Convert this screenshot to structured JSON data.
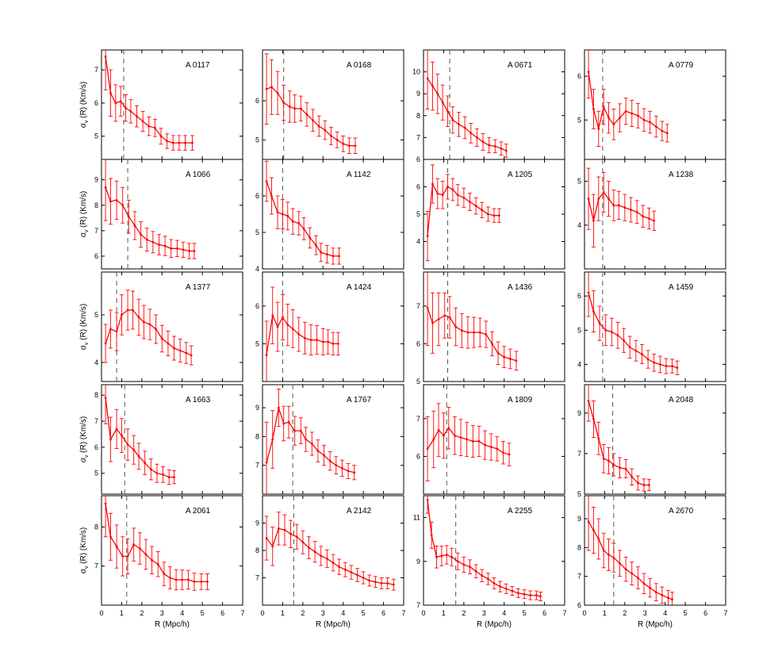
{
  "figure": {
    "ylabel_main": "σ",
    "ylabel_sub": "v",
    "ylabel_rest": " (R) (Km/s)",
    "xlabel": "R (Mpc/h)",
    "x_ticks": [
      "0",
      "1",
      "2",
      "3",
      "4",
      "5",
      "6",
      "7"
    ],
    "colors": {
      "series": "#ff0000",
      "axis": "#000000",
      "marker": "#555555"
    }
  },
  "chart_data": [
    {
      "type": "line",
      "title": "A 0117",
      "xlim": [
        0,
        7
      ],
      "ylim": [
        4.3,
        7.6
      ],
      "yticks": [
        5,
        6,
        7
      ],
      "marker": 1.1,
      "x": [
        0.2,
        0.45,
        0.7,
        0.95,
        1.2,
        1.45,
        1.75,
        2.05,
        2.35,
        2.65,
        2.95,
        3.25,
        3.55,
        3.85,
        4.15,
        4.5
      ],
      "y": [
        7.4,
        6.3,
        6.0,
        6.05,
        5.85,
        5.75,
        5.6,
        5.45,
        5.3,
        5.25,
        5.0,
        4.85,
        4.8,
        4.8,
        4.8,
        4.8
      ],
      "err": [
        1.0,
        0.7,
        0.55,
        0.45,
        0.4,
        0.35,
        0.32,
        0.3,
        0.28,
        0.26,
        0.24,
        0.22,
        0.22,
        0.22,
        0.22,
        0.22
      ]
    },
    {
      "type": "line",
      "title": "A 0168",
      "xlim": [
        0,
        7
      ],
      "ylim": [
        4.5,
        7.3
      ],
      "yticks": [
        5,
        6
      ],
      "marker": 1.05,
      "x": [
        0.2,
        0.45,
        0.75,
        1.05,
        1.35,
        1.6,
        1.9,
        2.2,
        2.5,
        2.8,
        3.1,
        3.4,
        3.7,
        4.0,
        4.3,
        4.6
      ],
      "y": [
        6.3,
        6.35,
        6.2,
        5.95,
        5.85,
        5.8,
        5.8,
        5.65,
        5.5,
        5.35,
        5.25,
        5.1,
        5.0,
        4.9,
        4.85,
        4.85
      ],
      "err": [
        0.9,
        0.7,
        0.55,
        0.45,
        0.4,
        0.35,
        0.32,
        0.3,
        0.28,
        0.26,
        0.24,
        0.22,
        0.2,
        0.2,
        0.2,
        0.2
      ]
    },
    {
      "type": "line",
      "title": "A 0671",
      "xlim": [
        0,
        7
      ],
      "ylim": [
        6,
        11
      ],
      "yticks": [
        6,
        7,
        8,
        9,
        10
      ],
      "marker": 1.3,
      "x": [
        0.2,
        0.45,
        0.7,
        0.95,
        1.2,
        1.45,
        1.75,
        2.05,
        2.35,
        2.65,
        2.95,
        3.25,
        3.55,
        3.85,
        4.1
      ],
      "y": [
        9.7,
        9.35,
        9.0,
        8.6,
        8.2,
        7.8,
        7.6,
        7.45,
        7.2,
        7.0,
        6.8,
        6.65,
        6.6,
        6.5,
        6.4
      ],
      "err": [
        1.4,
        1.1,
        0.9,
        0.8,
        0.7,
        0.6,
        0.55,
        0.5,
        0.45,
        0.4,
        0.38,
        0.35,
        0.3,
        0.3,
        0.3
      ]
    },
    {
      "type": "line",
      "title": "A 0779",
      "xlim": [
        0,
        7
      ],
      "ylim": [
        4.1,
        6.6
      ],
      "yticks": [
        5,
        6
      ],
      "marker": 0.9,
      "x": [
        0.2,
        0.45,
        0.7,
        0.95,
        1.2,
        1.45,
        1.75,
        2.05,
        2.35,
        2.65,
        2.95,
        3.25,
        3.55,
        3.85,
        4.1
      ],
      "y": [
        6.1,
        5.25,
        4.8,
        5.3,
        5.05,
        4.9,
        5.05,
        5.2,
        5.15,
        5.1,
        5.0,
        4.95,
        4.85,
        4.75,
        4.7
      ],
      "err": [
        0.6,
        0.45,
        0.4,
        0.4,
        0.35,
        0.35,
        0.32,
        0.3,
        0.3,
        0.28,
        0.26,
        0.25,
        0.24,
        0.22,
        0.2
      ]
    },
    {
      "type": "line",
      "title": "A 1066",
      "xlim": [
        0,
        7
      ],
      "ylim": [
        5.5,
        9.8
      ],
      "yticks": [
        6,
        7,
        8,
        9
      ],
      "marker": 1.3,
      "x": [
        0.2,
        0.45,
        0.75,
        1.05,
        1.35,
        1.65,
        1.95,
        2.25,
        2.55,
        2.85,
        3.15,
        3.45,
        3.75,
        4.05,
        4.35,
        4.6
      ],
      "y": [
        8.7,
        8.15,
        8.2,
        8.0,
        7.55,
        7.2,
        6.85,
        6.65,
        6.55,
        6.45,
        6.4,
        6.3,
        6.3,
        6.25,
        6.2,
        6.2
      ],
      "err": [
        1.3,
        0.9,
        0.75,
        0.7,
        0.65,
        0.55,
        0.5,
        0.45,
        0.42,
        0.4,
        0.38,
        0.35,
        0.32,
        0.3,
        0.3,
        0.3
      ]
    },
    {
      "type": "line",
      "title": "A 1142",
      "xlim": [
        0,
        7
      ],
      "ylim": [
        4,
        7
      ],
      "yticks": [
        4,
        5,
        6
      ],
      "marker": 1.0,
      "x": [
        0.2,
        0.45,
        0.75,
        1.0,
        1.25,
        1.5,
        1.8,
        2.05,
        2.35,
        2.65,
        2.9,
        3.2,
        3.5,
        3.8
      ],
      "y": [
        6.4,
        6.0,
        5.55,
        5.5,
        5.45,
        5.3,
        5.25,
        5.1,
        4.85,
        4.65,
        4.45,
        4.4,
        4.35,
        4.35
      ],
      "err": [
        0.55,
        0.5,
        0.45,
        0.4,
        0.38,
        0.35,
        0.32,
        0.3,
        0.28,
        0.26,
        0.25,
        0.24,
        0.22,
        0.22
      ]
    },
    {
      "type": "line",
      "title": "A 1205",
      "xlim": [
        0,
        7
      ],
      "ylim": [
        3,
        7
      ],
      "yticks": [
        4,
        5,
        6
      ],
      "marker": 1.2,
      "x": [
        0.2,
        0.45,
        0.7,
        0.95,
        1.2,
        1.45,
        1.7,
        2.0,
        2.3,
        2.6,
        2.9,
        3.2,
        3.5,
        3.75
      ],
      "y": [
        4.2,
        6.1,
        5.75,
        5.7,
        6.0,
        5.9,
        5.7,
        5.6,
        5.45,
        5.3,
        5.15,
        5.0,
        4.95,
        4.95
      ],
      "err": [
        0.9,
        0.7,
        0.55,
        0.5,
        0.45,
        0.4,
        0.38,
        0.35,
        0.32,
        0.3,
        0.28,
        0.26,
        0.25,
        0.25
      ]
    },
    {
      "type": "line",
      "title": "A 1238",
      "xlim": [
        0,
        7
      ],
      "ylim": [
        3,
        5.5
      ],
      "yticks": [
        4,
        5
      ],
      "marker": 0.9,
      "x": [
        0.2,
        0.45,
        0.7,
        0.95,
        1.2,
        1.45,
        1.7,
        2.0,
        2.3,
        2.6,
        2.9,
        3.2,
        3.45
      ],
      "y": [
        4.6,
        4.1,
        4.6,
        4.75,
        4.6,
        4.45,
        4.45,
        4.4,
        4.35,
        4.3,
        4.2,
        4.15,
        4.1
      ],
      "err": [
        0.7,
        0.6,
        0.5,
        0.45,
        0.4,
        0.35,
        0.32,
        0.3,
        0.28,
        0.26,
        0.25,
        0.24,
        0.22
      ]
    },
    {
      "type": "line",
      "title": "A 1377",
      "xlim": [
        0,
        7
      ],
      "ylim": [
        3.6,
        5.9
      ],
      "yticks": [
        4,
        5
      ],
      "marker": 0.75,
      "x": [
        0.2,
        0.45,
        0.75,
        1.0,
        1.3,
        1.55,
        1.85,
        2.1,
        2.4,
        2.7,
        3.0,
        3.3,
        3.6,
        3.9,
        4.2,
        4.45
      ],
      "y": [
        4.4,
        4.7,
        4.65,
        5.0,
        5.1,
        5.1,
        4.95,
        4.85,
        4.8,
        4.7,
        4.5,
        4.4,
        4.3,
        4.25,
        4.2,
        4.15
      ],
      "err": [
        0.4,
        0.4,
        0.4,
        0.42,
        0.42,
        0.4,
        0.38,
        0.35,
        0.32,
        0.3,
        0.28,
        0.26,
        0.25,
        0.24,
        0.22,
        0.2
      ]
    },
    {
      "type": "line",
      "title": "A 1424",
      "xlim": [
        0,
        7
      ],
      "ylim": [
        4,
        6.9
      ],
      "yticks": [
        5,
        6
      ],
      "marker": 1.0,
      "x": [
        0.2,
        0.5,
        0.75,
        1.0,
        1.25,
        1.5,
        1.8,
        2.1,
        2.4,
        2.7,
        3.0,
        3.25,
        3.5,
        3.75
      ],
      "y": [
        4.7,
        5.75,
        5.45,
        5.7,
        5.5,
        5.4,
        5.25,
        5.15,
        5.1,
        5.1,
        5.05,
        5.05,
        5.0,
        5.0
      ],
      "err": [
        0.9,
        0.75,
        0.65,
        0.6,
        0.55,
        0.5,
        0.45,
        0.42,
        0.4,
        0.38,
        0.35,
        0.32,
        0.3,
        0.3
      ]
    },
    {
      "type": "line",
      "title": "A 1436",
      "xlim": [
        0,
        7
      ],
      "ylim": [
        5,
        7.9
      ],
      "yticks": [
        5,
        6,
        7
      ],
      "marker": 1.2,
      "x": [
        0.2,
        0.45,
        0.75,
        1.05,
        1.3,
        1.6,
        1.9,
        2.2,
        2.5,
        2.8,
        3.1,
        3.4,
        3.7,
        4.0,
        4.3,
        4.6
      ],
      "y": [
        6.95,
        6.55,
        6.65,
        6.75,
        6.7,
        6.45,
        6.35,
        6.3,
        6.3,
        6.3,
        6.25,
        6.0,
        5.75,
        5.65,
        5.6,
        5.55
      ],
      "err": [
        1.0,
        0.8,
        0.7,
        0.6,
        0.55,
        0.5,
        0.45,
        0.42,
        0.4,
        0.38,
        0.35,
        0.32,
        0.3,
        0.28,
        0.26,
        0.25
      ]
    },
    {
      "type": "line",
      "title": "A 1459",
      "xlim": [
        0,
        7
      ],
      "ylim": [
        3.5,
        6.7
      ],
      "yticks": [
        4,
        5,
        6
      ],
      "marker": 0.9,
      "x": [
        0.2,
        0.45,
        0.75,
        1.05,
        1.35,
        1.65,
        1.95,
        2.25,
        2.55,
        2.85,
        3.15,
        3.45,
        3.75,
        4.05,
        4.35,
        4.6
      ],
      "y": [
        6.1,
        5.55,
        5.2,
        5.0,
        4.95,
        4.85,
        4.7,
        4.5,
        4.4,
        4.3,
        4.15,
        4.05,
        4.0,
        3.95,
        3.95,
        3.9
      ],
      "err": [
        0.7,
        0.6,
        0.5,
        0.45,
        0.4,
        0.38,
        0.35,
        0.32,
        0.3,
        0.28,
        0.26,
        0.25,
        0.24,
        0.22,
        0.2,
        0.2
      ]
    },
    {
      "type": "line",
      "title": "A 1663",
      "xlim": [
        0,
        7
      ],
      "ylim": [
        4.2,
        8.4
      ],
      "yticks": [
        5,
        6,
        7,
        8
      ],
      "marker": 1.15,
      "x": [
        0.2,
        0.45,
        0.75,
        1.0,
        1.3,
        1.6,
        1.85,
        2.15,
        2.45,
        2.75,
        3.05,
        3.35,
        3.6
      ],
      "y": [
        7.9,
        6.3,
        6.7,
        6.45,
        6.1,
        5.9,
        5.65,
        5.4,
        5.15,
        5.0,
        4.95,
        4.85,
        4.85
      ],
      "err": [
        1.0,
        0.85,
        0.75,
        0.65,
        0.6,
        0.55,
        0.5,
        0.45,
        0.4,
        0.35,
        0.3,
        0.28,
        0.25
      ]
    },
    {
      "type": "line",
      "title": "A 1767",
      "xlim": [
        0,
        7
      ],
      "ylim": [
        6,
        9.8
      ],
      "yticks": [
        7,
        8,
        9
      ],
      "marker": 1.5,
      "x": [
        0.2,
        0.5,
        0.8,
        1.05,
        1.3,
        1.6,
        1.9,
        2.15,
        2.45,
        2.75,
        3.05,
        3.35,
        3.65,
        3.95,
        4.25,
        4.55
      ],
      "y": [
        7.1,
        7.9,
        9.0,
        8.45,
        8.5,
        8.2,
        8.2,
        7.9,
        7.75,
        7.5,
        7.35,
        7.15,
        7.0,
        6.9,
        6.8,
        6.75
      ],
      "err": [
        1.4,
        1.0,
        0.65,
        0.6,
        0.55,
        0.5,
        0.45,
        0.42,
        0.4,
        0.38,
        0.35,
        0.32,
        0.3,
        0.28,
        0.26,
        0.25
      ]
    },
    {
      "type": "line",
      "title": "A 1809",
      "xlim": [
        0,
        7
      ],
      "ylim": [
        5,
        7.9
      ],
      "yticks": [
        6,
        7
      ],
      "marker": 1.15,
      "x": [
        0.2,
        0.5,
        0.75,
        1.0,
        1.25,
        1.55,
        1.85,
        2.15,
        2.45,
        2.75,
        3.05,
        3.35,
        3.65,
        3.95,
        4.25
      ],
      "y": [
        6.2,
        6.45,
        6.7,
        6.55,
        6.75,
        6.55,
        6.5,
        6.45,
        6.4,
        6.4,
        6.3,
        6.25,
        6.2,
        6.1,
        6.05
      ],
      "err": [
        0.85,
        0.75,
        0.7,
        0.6,
        0.55,
        0.5,
        0.48,
        0.45,
        0.42,
        0.4,
        0.38,
        0.35,
        0.32,
        0.3,
        0.3
      ]
    },
    {
      "type": "line",
      "title": "A 2048",
      "xlim": [
        0,
        7
      ],
      "ylim": [
        5,
        10.4
      ],
      "yticks": [
        5,
        7,
        9
      ],
      "marker": 1.4,
      "x": [
        0.2,
        0.45,
        0.7,
        0.95,
        1.2,
        1.45,
        1.75,
        2.05,
        2.35,
        2.65,
        2.95,
        3.2
      ],
      "y": [
        9.6,
        8.7,
        7.75,
        6.75,
        6.65,
        6.45,
        6.3,
        6.25,
        5.85,
        5.55,
        5.45,
        5.45
      ],
      "err": [
        1.0,
        0.9,
        0.8,
        0.7,
        0.65,
        0.55,
        0.5,
        0.45,
        0.4,
        0.35,
        0.3,
        0.28
      ]
    },
    {
      "type": "line",
      "title": "A 2061",
      "xlim": [
        0,
        7
      ],
      "ylim": [
        6,
        8.8
      ],
      "yticks": [
        7,
        8
      ],
      "marker": 1.25,
      "x": [
        0.2,
        0.45,
        0.75,
        1.05,
        1.3,
        1.6,
        1.9,
        2.2,
        2.5,
        2.8,
        3.1,
        3.4,
        3.7,
        4.0,
        4.3,
        4.6,
        4.95,
        5.25
      ],
      "y": [
        8.6,
        7.75,
        7.5,
        7.25,
        7.25,
        7.55,
        7.45,
        7.3,
        7.15,
        7.05,
        6.8,
        6.7,
        6.65,
        6.65,
        6.65,
        6.6,
        6.6,
        6.6
      ],
      "err": [
        0.85,
        0.6,
        0.55,
        0.5,
        0.45,
        0.42,
        0.4,
        0.38,
        0.35,
        0.32,
        0.3,
        0.28,
        0.26,
        0.25,
        0.24,
        0.22,
        0.2,
        0.2
      ]
    },
    {
      "type": "line",
      "title": "A 2142",
      "xlim": [
        0,
        7
      ],
      "ylim": [
        6,
        10
      ],
      "yticks": [
        7,
        8,
        9
      ],
      "marker": 1.55,
      "x": [
        0.2,
        0.5,
        0.8,
        1.1,
        1.4,
        1.7,
        2.0,
        2.3,
        2.6,
        2.9,
        3.2,
        3.5,
        3.8,
        4.1,
        4.4,
        4.7,
        5.0,
        5.3,
        5.6,
        5.9,
        6.2,
        6.5
      ],
      "y": [
        8.45,
        8.15,
        8.8,
        8.75,
        8.6,
        8.5,
        8.3,
        8.1,
        7.95,
        7.8,
        7.7,
        7.55,
        7.4,
        7.3,
        7.2,
        7.1,
        7.0,
        6.9,
        6.85,
        6.8,
        6.8,
        6.75
      ],
      "err": [
        0.8,
        0.7,
        0.6,
        0.55,
        0.5,
        0.45,
        0.42,
        0.4,
        0.38,
        0.35,
        0.32,
        0.3,
        0.28,
        0.26,
        0.25,
        0.24,
        0.22,
        0.2,
        0.2,
        0.2,
        0.2,
        0.2
      ]
    },
    {
      "type": "line",
      "title": "A 2255",
      "xlim": [
        0,
        7
      ],
      "ylim": [
        7,
        12
      ],
      "yticks": [
        7,
        9,
        11
      ],
      "marker": 1.6,
      "x": [
        0.2,
        0.4,
        0.65,
        0.9,
        1.15,
        1.4,
        1.7,
        2.0,
        2.3,
        2.6,
        2.9,
        3.2,
        3.5,
        3.8,
        4.1,
        4.4,
        4.7,
        5.0,
        5.3,
        5.6,
        5.8
      ],
      "y": [
        11.8,
        10.2,
        9.2,
        9.25,
        9.3,
        9.2,
        9.0,
        8.85,
        8.75,
        8.55,
        8.35,
        8.2,
        8.0,
        7.85,
        7.75,
        7.65,
        7.55,
        7.5,
        7.45,
        7.45,
        7.4
      ],
      "err": [
        0.6,
        0.6,
        0.5,
        0.45,
        0.42,
        0.4,
        0.38,
        0.35,
        0.32,
        0.3,
        0.28,
        0.26,
        0.25,
        0.24,
        0.22,
        0.2,
        0.2,
        0.2,
        0.2,
        0.2,
        0.2
      ]
    },
    {
      "type": "line",
      "title": "A 2670",
      "xlim": [
        0,
        7
      ],
      "ylim": [
        6,
        9.8
      ],
      "yticks": [
        6,
        7,
        8,
        9
      ],
      "marker": 1.45,
      "x": [
        0.2,
        0.45,
        0.7,
        0.95,
        1.2,
        1.45,
        1.75,
        2.05,
        2.35,
        2.65,
        2.95,
        3.25,
        3.55,
        3.85,
        4.15,
        4.35
      ],
      "y": [
        8.9,
        8.6,
        8.3,
        7.9,
        7.75,
        7.65,
        7.45,
        7.25,
        7.1,
        6.95,
        6.75,
        6.6,
        6.45,
        6.35,
        6.25,
        6.2
      ],
      "err": [
        1.0,
        0.8,
        0.7,
        0.6,
        0.55,
        0.5,
        0.45,
        0.42,
        0.4,
        0.38,
        0.35,
        0.32,
        0.3,
        0.28,
        0.26,
        0.25
      ]
    }
  ]
}
